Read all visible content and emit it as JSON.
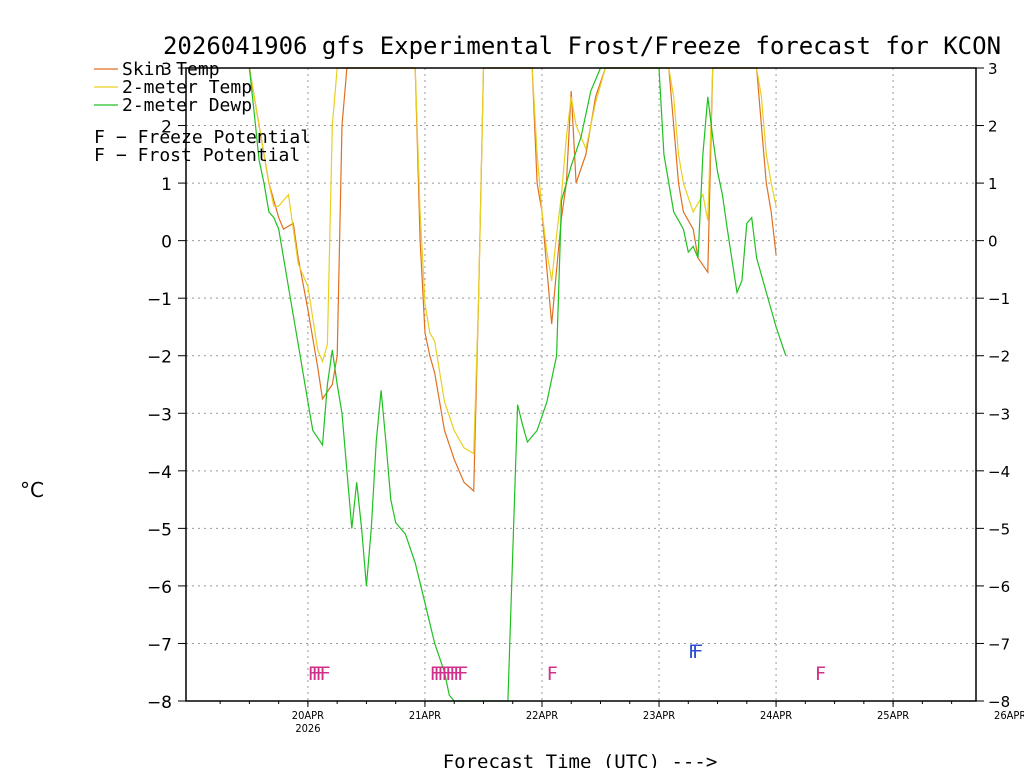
{
  "chart_data": {
    "type": "line",
    "title": "2026041906 gfs Experimental Frost/Freeze forecast for KCON",
    "xlabel": "Forecast Time (UTC) --->",
    "ylabel": "°C",
    "ylim": [
      -8,
      3
    ],
    "xlim_hours": [
      -7,
      155
    ],
    "y_ticks": [
      -8,
      -7,
      -6,
      -5,
      -4,
      -3,
      -2,
      -1,
      0,
      1,
      2,
      3
    ],
    "x_ticks": [
      {
        "hour": 18,
        "label": "20APR",
        "sublabel": "2026"
      },
      {
        "hour": 42,
        "label": "21APR",
        "sublabel": ""
      },
      {
        "hour": 66,
        "label": "22APR",
        "sublabel": ""
      },
      {
        "hour": 90,
        "label": "23APR",
        "sublabel": ""
      },
      {
        "hour": 114,
        "label": "24APR",
        "sublabel": ""
      },
      {
        "hour": 138,
        "label": "25APR",
        "sublabel": ""
      },
      {
        "hour": 162,
        "label": "26APR",
        "sublabel": ""
      }
    ],
    "grid": true,
    "series": [
      {
        "name": "Skin Temp",
        "color": "#e07020",
        "points": [
          [
            6,
            3.0
          ],
          [
            8,
            2.0
          ],
          [
            10,
            1.0
          ],
          [
            12,
            0.4
          ],
          [
            13,
            0.2
          ],
          [
            15,
            0.3
          ],
          [
            16,
            -0.3
          ],
          [
            18,
            -1.2
          ],
          [
            20,
            -2.2
          ],
          [
            21,
            -2.75
          ],
          [
            23,
            -2.5
          ],
          [
            24,
            -2.0
          ],
          [
            25,
            2.0
          ],
          [
            26,
            3.0
          ],
          [
            40,
            3.0
          ],
          [
            41,
            0.0
          ],
          [
            42,
            -1.6
          ],
          [
            43,
            -2.0
          ],
          [
            44,
            -2.3
          ],
          [
            46,
            -3.3
          ],
          [
            48,
            -3.8
          ],
          [
            50,
            -4.2
          ],
          [
            52,
            -4.35
          ],
          [
            53,
            -1.0
          ],
          [
            54,
            3.0
          ],
          [
            64,
            3.0
          ],
          [
            65,
            1.0
          ],
          [
            66,
            0.5
          ],
          [
            67,
            -0.5
          ],
          [
            68,
            -1.45
          ],
          [
            69,
            -0.5
          ],
          [
            70,
            0.4
          ],
          [
            71,
            1.0
          ],
          [
            72,
            2.6
          ],
          [
            73,
            1.0
          ],
          [
            75,
            1.5
          ],
          [
            77,
            2.5
          ],
          [
            79,
            3.0
          ],
          [
            92,
            3.0
          ],
          [
            93,
            2.0
          ],
          [
            94,
            1.0
          ],
          [
            95,
            0.5
          ],
          [
            97,
            0.2
          ],
          [
            98,
            -0.3
          ],
          [
            100,
            -0.55
          ],
          [
            101,
            3.0
          ],
          [
            110,
            3.0
          ],
          [
            111,
            2.0
          ],
          [
            112,
            1.0
          ],
          [
            113,
            0.5
          ],
          [
            114,
            -0.25
          ]
        ]
      },
      {
        "name": "2-meter Temp",
        "color": "#e8d020",
        "points": [
          [
            6,
            3.0
          ],
          [
            8,
            2.0
          ],
          [
            10,
            1.0
          ],
          [
            11,
            0.6
          ],
          [
            12,
            0.6
          ],
          [
            13,
            0.7
          ],
          [
            14,
            0.8
          ],
          [
            16,
            -0.4
          ],
          [
            18,
            -0.8
          ],
          [
            20,
            -1.9
          ],
          [
            21,
            -2.1
          ],
          [
            22,
            -1.8
          ],
          [
            23,
            2.0
          ],
          [
            24,
            3.0
          ],
          [
            40,
            3.0
          ],
          [
            41,
            0.5
          ],
          [
            42,
            -1.1
          ],
          [
            43,
            -1.6
          ],
          [
            44,
            -1.75
          ],
          [
            46,
            -2.8
          ],
          [
            48,
            -3.3
          ],
          [
            50,
            -3.6
          ],
          [
            52,
            -3.7
          ],
          [
            53,
            -1.0
          ],
          [
            54,
            3.0
          ],
          [
            64,
            3.0
          ],
          [
            65,
            1.5
          ],
          [
            66,
            0.5
          ],
          [
            67,
            -0.2
          ],
          [
            68,
            -0.7
          ],
          [
            69,
            0.1
          ],
          [
            70,
            0.8
          ],
          [
            71,
            1.8
          ],
          [
            72,
            2.5
          ],
          [
            73,
            2.0
          ],
          [
            75,
            1.6
          ],
          [
            77,
            2.4
          ],
          [
            79,
            3.0
          ],
          [
            92,
            3.0
          ],
          [
            93,
            2.5
          ],
          [
            94,
            1.5
          ],
          [
            95,
            1.0
          ],
          [
            97,
            0.5
          ],
          [
            99,
            0.8
          ],
          [
            100,
            0.35
          ],
          [
            101,
            3.0
          ],
          [
            110,
            3.0
          ],
          [
            111,
            2.5
          ],
          [
            112,
            1.5
          ],
          [
            113,
            1.0
          ],
          [
            114,
            0.6
          ]
        ]
      },
      {
        "name": "2-meter Dewp",
        "color": "#20c020",
        "points": [
          [
            6,
            3.0
          ],
          [
            7,
            2.2
          ],
          [
            8,
            1.4
          ],
          [
            9,
            1.0
          ],
          [
            10,
            0.5
          ],
          [
            11,
            0.4
          ],
          [
            12,
            0.2
          ],
          [
            14,
            -0.8
          ],
          [
            16,
            -1.8
          ],
          [
            18,
            -2.8
          ],
          [
            19,
            -3.3
          ],
          [
            21,
            -3.55
          ],
          [
            22,
            -2.5
          ],
          [
            23,
            -1.9
          ],
          [
            24,
            -2.5
          ],
          [
            25,
            -3.0
          ],
          [
            26,
            -4.0
          ],
          [
            27,
            -5.0
          ],
          [
            28,
            -4.2
          ],
          [
            29,
            -5.0
          ],
          [
            30,
            -6.0
          ],
          [
            31,
            -5.0
          ],
          [
            32,
            -3.5
          ],
          [
            33,
            -2.6
          ],
          [
            34,
            -3.5
          ],
          [
            35,
            -4.5
          ],
          [
            36,
            -4.9
          ],
          [
            38,
            -5.1
          ],
          [
            40,
            -5.6
          ],
          [
            42,
            -6.3
          ],
          [
            44,
            -7.0
          ],
          [
            46,
            -7.5
          ],
          [
            47,
            -7.9
          ],
          [
            48,
            -8.0
          ],
          [
            59,
            -8.0
          ],
          [
            61,
            -2.85
          ],
          [
            62,
            -3.2
          ],
          [
            63,
            -3.5
          ],
          [
            65,
            -3.3
          ],
          [
            67,
            -2.8
          ],
          [
            69,
            -2.0
          ],
          [
            70,
            0.7
          ],
          [
            71,
            1.0
          ],
          [
            72,
            1.3
          ],
          [
            74,
            1.8
          ],
          [
            76,
            2.6
          ],
          [
            78,
            3.0
          ],
          [
            90,
            3.0
          ],
          [
            91,
            1.5
          ],
          [
            92,
            1.0
          ],
          [
            93,
            0.5
          ],
          [
            95,
            0.2
          ],
          [
            96,
            -0.2
          ],
          [
            97,
            -0.1
          ],
          [
            98,
            -0.3
          ],
          [
            99,
            1.5
          ],
          [
            100,
            2.5
          ],
          [
            101,
            1.8
          ],
          [
            102,
            1.2
          ],
          [
            103,
            0.8
          ],
          [
            104,
            0.2
          ],
          [
            106,
            -0.9
          ],
          [
            107,
            -0.7
          ],
          [
            108,
            0.3
          ],
          [
            109,
            0.4
          ],
          [
            110,
            -0.3
          ],
          [
            112,
            -0.9
          ],
          [
            114,
            -1.5
          ],
          [
            116,
            -2.0
          ]
        ]
      }
    ],
    "flags": [
      {
        "type": "freeze",
        "hour": 18,
        "text": "FFFF"
      },
      {
        "type": "freeze",
        "hour": 43,
        "text": "FFFFFFFF"
      },
      {
        "type": "freeze",
        "hour": 67,
        "text": "F"
      },
      {
        "type": "frost",
        "hour": 96,
        "text": "FF"
      },
      {
        "type": "freeze",
        "hour": 122,
        "text": "F"
      }
    ],
    "legend": [
      {
        "label": "Skin Temp",
        "color": "#e07020"
      },
      {
        "label": "2-meter Temp",
        "color": "#e8d020"
      },
      {
        "label": "2-meter Dewp",
        "color": "#20c020"
      }
    ],
    "flag_legend": [
      {
        "symbol": "F",
        "label": "− Freeze Potential",
        "color": "#d0308a"
      },
      {
        "symbol": "F",
        "label": "− Frost Potential",
        "color": "#3050d0"
      }
    ]
  }
}
